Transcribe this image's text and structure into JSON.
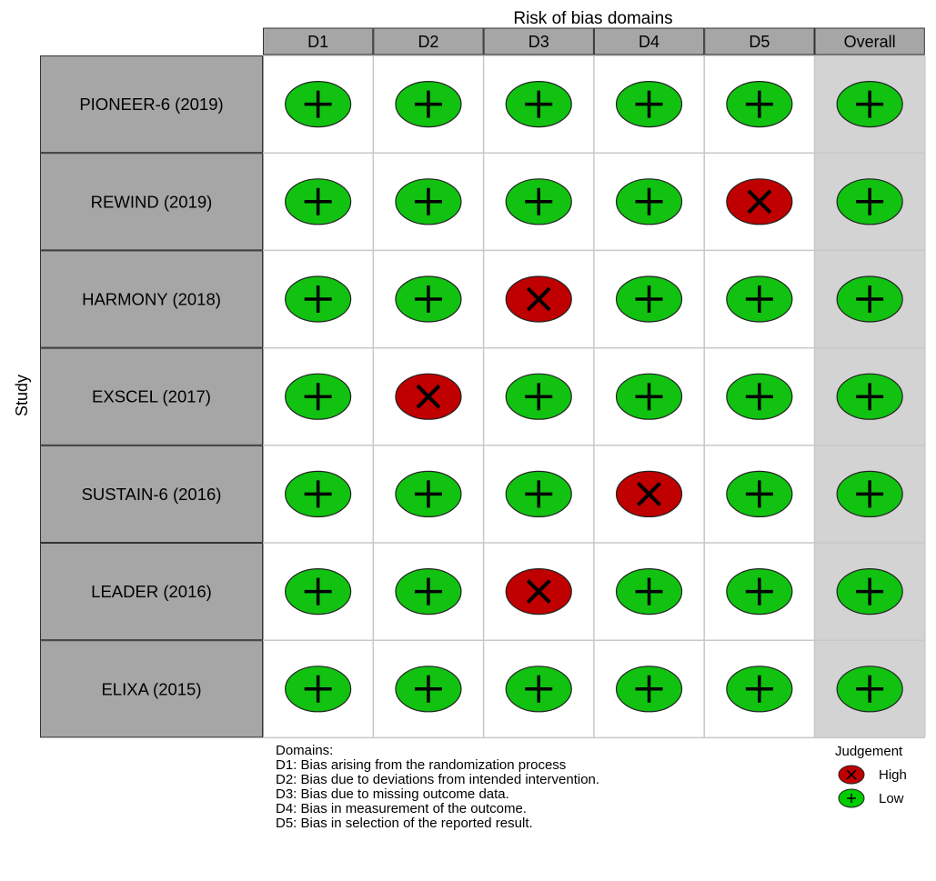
{
  "chart_data": {
    "type": "table",
    "title": "Risk of bias domains",
    "ylabel": "Study",
    "columns": [
      "D1",
      "D2",
      "D3",
      "D4",
      "D5",
      "Overall"
    ],
    "rows": [
      {
        "study": "PIONEER-6 (2019)",
        "judgements": [
          "Low",
          "Low",
          "Low",
          "Low",
          "Low",
          "Low"
        ]
      },
      {
        "study": "REWIND (2019)",
        "judgements": [
          "Low",
          "Low",
          "Low",
          "Low",
          "High",
          "Low"
        ]
      },
      {
        "study": "HARMONY (2018)",
        "judgements": [
          "Low",
          "Low",
          "High",
          "Low",
          "Low",
          "Low"
        ]
      },
      {
        "study": "EXSCEL (2017)",
        "judgements": [
          "Low",
          "High",
          "Low",
          "Low",
          "Low",
          "Low"
        ]
      },
      {
        "study": "SUSTAIN-6 (2016)",
        "judgements": [
          "Low",
          "Low",
          "Low",
          "High",
          "Low",
          "Low"
        ]
      },
      {
        "study": "LEADER (2016)",
        "judgements": [
          "Low",
          "Low",
          "High",
          "Low",
          "Low",
          "Low"
        ]
      },
      {
        "study": "ELIXA (2015)",
        "judgements": [
          "Low",
          "Low",
          "Low",
          "Low",
          "Low",
          "Low"
        ]
      }
    ],
    "domains_heading": "Domains:",
    "domains": [
      "D1: Bias arising from the randomization process",
      "D2: Bias due to deviations from intended intervention.",
      "D3: Bias due to missing outcome data.",
      "D4: Bias in measurement of the outcome.",
      "D5: Bias in selection of the reported result."
    ],
    "legend": {
      "title": "Judgement",
      "placement": "bottom-right",
      "items": [
        {
          "label": "High",
          "symbol": "X",
          "color": "#c00000"
        },
        {
          "label": "Low",
          "symbol": "+",
          "color": "#00cc00"
        }
      ]
    },
    "colors": {
      "high": "#c00000",
      "low": "#11c211",
      "header_bg": "#a6a6a6",
      "overall_bg": "#d3d3d3",
      "grid": "#c8c8c8"
    }
  }
}
